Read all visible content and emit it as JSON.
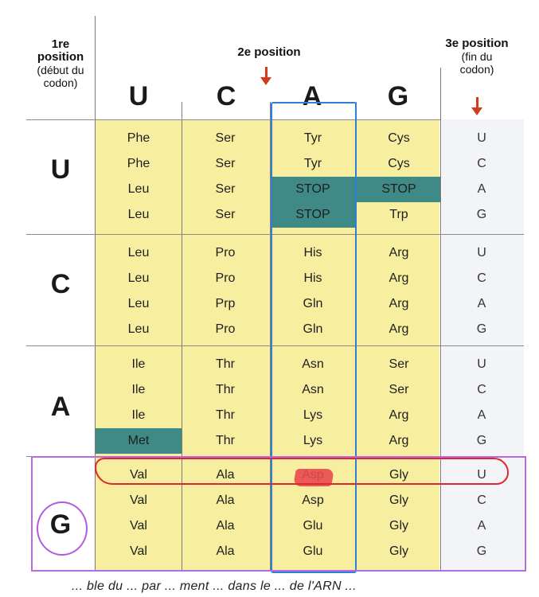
{
  "header": {
    "first_position": [
      "1re",
      "position",
      "(début du",
      "codon)"
    ],
    "second_position": "2e position",
    "third_position": [
      "3e position",
      "(fin du",
      "codon)"
    ]
  },
  "columns": [
    "U",
    "C",
    "A",
    "G"
  ],
  "rows": [
    {
      "letter": "U",
      "cells": [
        [
          "Phe",
          "Ser",
          "Tyr",
          "Cys"
        ],
        [
          "Phe",
          "Ser",
          "Tyr",
          "Cys"
        ],
        [
          "Leu",
          "Ser",
          "STOP",
          "STOP"
        ],
        [
          "Leu",
          "Ser",
          "STOP",
          "Trp"
        ]
      ]
    },
    {
      "letter": "C",
      "cells": [
        [
          "Leu",
          "Pro",
          "His",
          "Arg"
        ],
        [
          "Leu",
          "Pro",
          "His",
          "Arg"
        ],
        [
          "Leu",
          "Prp",
          "Gln",
          "Arg"
        ],
        [
          "Leu",
          "Pro",
          "Gln",
          "Arg"
        ]
      ]
    },
    {
      "letter": "A",
      "cells": [
        [
          "Ile",
          "Thr",
          "Asn",
          "Ser"
        ],
        [
          "Ile",
          "Thr",
          "Asn",
          "Ser"
        ],
        [
          "Ile",
          "Thr",
          "Lys",
          "Arg"
        ],
        [
          "Met",
          "Thr",
          "Lys",
          "Arg"
        ]
      ]
    },
    {
      "letter": "G",
      "cells": [
        [
          "Val",
          "Ala",
          "Asp",
          "Gly"
        ],
        [
          "Val",
          "Ala",
          "Asp",
          "Gly"
        ],
        [
          "Val",
          "Ala",
          "Glu",
          "Gly"
        ],
        [
          "Val",
          "Ala",
          "Glu",
          "Gly"
        ]
      ]
    }
  ],
  "third_bases": [
    "U",
    "C",
    "A",
    "G"
  ],
  "colors": {
    "cell_fill": "#f7ee9f",
    "stop_fill": "#3f8a86",
    "arrow": "#d13b1e",
    "blue_outline": "#2f7fd6",
    "magenta_outline": "#b86ae0",
    "red_outline": "#e0252e"
  },
  "footer_text": "... ble du ... par ... ment ... dans le ... de l'ARN ..."
}
